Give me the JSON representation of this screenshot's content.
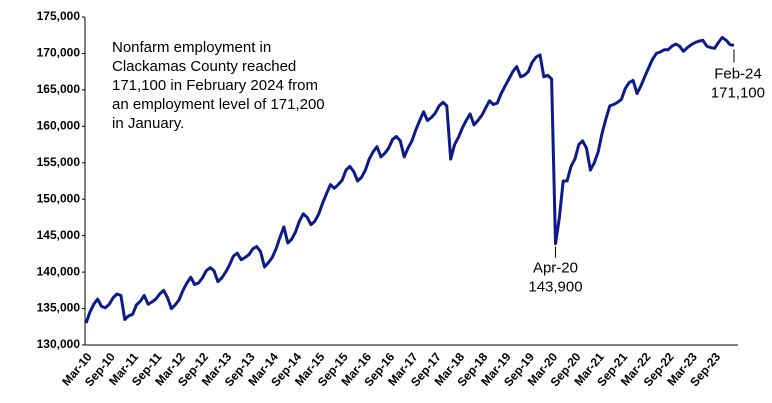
{
  "chart_data": {
    "type": "line",
    "annotation": [
      "Nonfarm employment in",
      "Clackamas County reached",
      "171,100 in February 2024 from",
      "an employment level of 171,200",
      "in January."
    ],
    "point_labels": [
      {
        "x": "Apr-20",
        "label": "143,900"
      },
      {
        "x": "Feb-24",
        "label": "171,100"
      }
    ],
    "categories": [
      "Mar-10",
      null,
      null,
      null,
      null,
      null,
      "Sep-10",
      null,
      null,
      null,
      null,
      null,
      "Mar-11",
      null,
      null,
      null,
      null,
      null,
      "Sep-11",
      null,
      null,
      null,
      null,
      null,
      "Mar-12",
      null,
      null,
      null,
      null,
      null,
      "Sep-12",
      null,
      null,
      null,
      null,
      null,
      "Mar-13",
      null,
      null,
      null,
      null,
      null,
      "Sep-13",
      null,
      null,
      null,
      null,
      null,
      "Mar-14",
      null,
      null,
      null,
      null,
      null,
      "Sep-14",
      null,
      null,
      null,
      null,
      null,
      "Mar-15",
      null,
      null,
      null,
      null,
      null,
      "Sep-15",
      null,
      null,
      null,
      null,
      null,
      "Mar-16",
      null,
      null,
      null,
      null,
      null,
      "Sep-16",
      null,
      null,
      null,
      null,
      null,
      "Mar-17",
      null,
      null,
      null,
      null,
      null,
      "Sep-17",
      null,
      null,
      null,
      null,
      null,
      "Mar-18",
      null,
      null,
      null,
      null,
      null,
      "Sep-18",
      null,
      null,
      null,
      null,
      null,
      "Mar-19",
      null,
      null,
      null,
      null,
      null,
      "Sep-19",
      null,
      null,
      null,
      null,
      null,
      "Mar-20",
      null,
      null,
      null,
      null,
      null,
      "Sep-20",
      null,
      null,
      null,
      null,
      null,
      "Mar-21",
      null,
      null,
      null,
      null,
      null,
      "Sep-21",
      null,
      null,
      null,
      null,
      null,
      "Mar-22",
      null,
      null,
      null,
      null,
      null,
      "Sep-22",
      null,
      null,
      null,
      null,
      null,
      "Mar-23",
      null,
      null,
      null,
      null,
      null,
      "Sep-23",
      null,
      null,
      null,
      null,
      null
    ],
    "series": [
      {
        "name": "Nonfarm employment",
        "color": "#0d1a8a",
        "values": [
          133000,
          134500,
          135600,
          136300,
          135300,
          135100,
          135600,
          136500,
          137000,
          136800,
          133500,
          134000,
          134200,
          135500,
          136000,
          136800,
          135600,
          135900,
          136300,
          137000,
          137500,
          136500,
          135000,
          135500,
          136200,
          137500,
          138500,
          139300,
          138300,
          138500,
          139200,
          140200,
          140600,
          140200,
          138700,
          139200,
          140000,
          141000,
          142200,
          142600,
          141700,
          142000,
          142400,
          143200,
          143500,
          142800,
          140700,
          141300,
          142000,
          143200,
          144800,
          146200,
          144000,
          144500,
          145500,
          147000,
          148000,
          147500,
          146500,
          147000,
          148000,
          149500,
          150800,
          152000,
          151500,
          152000,
          152600,
          154000,
          154500,
          153800,
          152500,
          153000,
          154000,
          155500,
          156500,
          157200,
          155800,
          156300,
          157000,
          158200,
          158600,
          158000,
          155800,
          157000,
          158000,
          159500,
          160800,
          162000,
          160800,
          161200,
          161800,
          162800,
          163300,
          162800,
          155500,
          157500,
          158500,
          159800,
          160800,
          161700,
          160200,
          160800,
          161500,
          162500,
          163500,
          163000,
          163200,
          164500,
          165500,
          166500,
          167500,
          168200,
          166800,
          167000,
          167500,
          168800,
          169500,
          169800,
          166800,
          167000,
          166500,
          143900,
          147500,
          152500,
          152500,
          154500,
          155500,
          157500,
          158000,
          157000,
          154000,
          155000,
          156500,
          159000,
          161000,
          162800,
          163000,
          163300,
          163700,
          165200,
          166000,
          166300,
          164500,
          165500,
          166800,
          168000,
          169200,
          170000,
          170200,
          170500,
          170500,
          171000,
          171300,
          171000,
          170300,
          170800,
          171200,
          171500,
          171700,
          171800,
          171000,
          170800,
          170700,
          171500,
          172200,
          171800,
          171200,
          171100
        ]
      }
    ],
    "ylim": [
      130000,
      175000
    ],
    "yticks": [
      {
        "value": 130000,
        "label": "130,000"
      },
      {
        "value": 135000,
        "label": "135,000"
      },
      {
        "value": 140000,
        "label": "140,000"
      },
      {
        "value": 145000,
        "label": "145,000"
      },
      {
        "value": 150000,
        "label": "150,000"
      },
      {
        "value": 155000,
        "label": "155,000"
      },
      {
        "value": 160000,
        "label": "160,000"
      },
      {
        "value": 165000,
        "label": "165,000"
      },
      {
        "value": 170000,
        "label": "170,000"
      },
      {
        "value": 175000,
        "label": "175,000"
      }
    ],
    "grid": false
  }
}
